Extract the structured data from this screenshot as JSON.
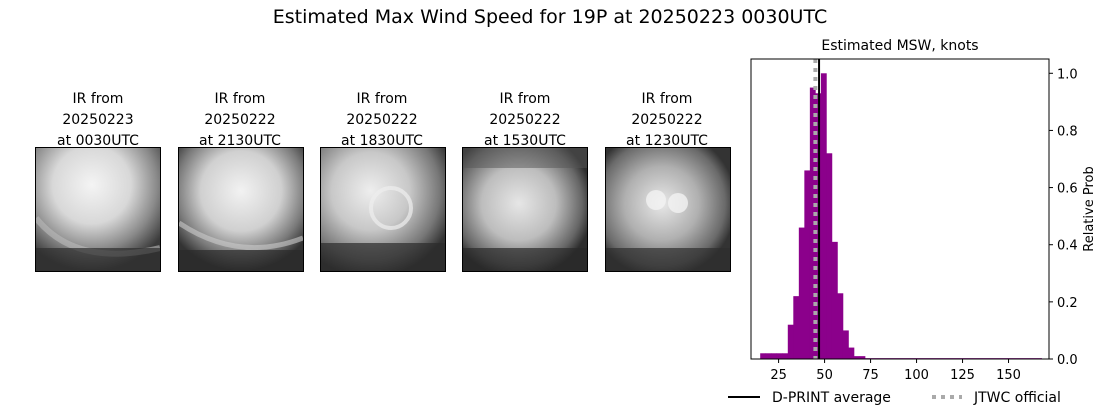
{
  "title": "Estimated Max Wind Speed for 19P at 20250223 0030UTC",
  "panels": [
    {
      "l1": "IR from",
      "l2": "20250223",
      "l3": "at 0030UTC"
    },
    {
      "l1": "IR from",
      "l2": "20250222",
      "l3": "at 2130UTC"
    },
    {
      "l1": "IR from",
      "l2": "20250222",
      "l3": "at 1830UTC"
    },
    {
      "l1": "IR from",
      "l2": "20250222",
      "l3": "at 1530UTC"
    },
    {
      "l1": "IR from",
      "l2": "20250222",
      "l3": "at 1230UTC"
    }
  ],
  "chart_data": {
    "type": "bar",
    "title": "Estimated MSW, knots",
    "xlabel": "",
    "ylabel": "Relative Prob",
    "xlim": [
      10,
      172
    ],
    "ylim": [
      0,
      1.05
    ],
    "xticks": [
      25,
      50,
      75,
      100,
      125,
      150
    ],
    "yticks": [
      0.0,
      0.2,
      0.4,
      0.6,
      0.8,
      1.0
    ],
    "bin_width": 3,
    "bins": [
      {
        "x0": 15,
        "x1": 18,
        "y": 0.02
      },
      {
        "x0": 18,
        "x1": 21,
        "y": 0.02
      },
      {
        "x0": 21,
        "x1": 24,
        "y": 0.02
      },
      {
        "x0": 24,
        "x1": 27,
        "y": 0.02
      },
      {
        "x0": 27,
        "x1": 30,
        "y": 0.02
      },
      {
        "x0": 30,
        "x1": 33,
        "y": 0.12
      },
      {
        "x0": 33,
        "x1": 36,
        "y": 0.22
      },
      {
        "x0": 36,
        "x1": 39,
        "y": 0.46
      },
      {
        "x0": 39,
        "x1": 42,
        "y": 0.66
      },
      {
        "x0": 42,
        "x1": 45,
        "y": 0.95
      },
      {
        "x0": 45,
        "x1": 48,
        "y": 0.93
      },
      {
        "x0": 48,
        "x1": 51,
        "y": 1.0
      },
      {
        "x0": 51,
        "x1": 54,
        "y": 0.72
      },
      {
        "x0": 54,
        "x1": 57,
        "y": 0.41
      },
      {
        "x0": 57,
        "x1": 60,
        "y": 0.23
      },
      {
        "x0": 60,
        "x1": 63,
        "y": 0.1
      },
      {
        "x0": 63,
        "x1": 66,
        "y": 0.04
      },
      {
        "x0": 66,
        "x1": 69,
        "y": 0.01
      },
      {
        "x0": 69,
        "x1": 72,
        "y": 0.01
      },
      {
        "x0": 72,
        "x1": 168,
        "y": 0.003
      }
    ],
    "dprint_average": 47,
    "jtwc_official": 45,
    "bar_color": "#8b008b",
    "dprint_color": "#000000",
    "jtwc_color": "#aaaaaa",
    "legend": [
      {
        "label": "D-PRINT average",
        "style": "solid"
      },
      {
        "label": "JTWC official",
        "style": "dotted"
      }
    ],
    "legend_position": "bottom-right"
  }
}
